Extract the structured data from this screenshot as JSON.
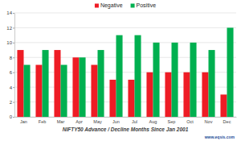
{
  "chart_data": {
    "type": "bar",
    "title": "NIFTY50 Advance / Decline Months Since Jan 2001",
    "annotations": [
      "www.eqsis.com"
    ],
    "categories": [
      "Jan",
      "Feb",
      "Mar",
      "Apr",
      "May",
      "Jun",
      "Jul",
      "Aug",
      "Sep",
      "Oct",
      "Nov",
      "Dec"
    ],
    "series": [
      {
        "name": "Negative",
        "color": "#ee1c25",
        "values": [
          9,
          7,
          9,
          8,
          7,
          5,
          5,
          6,
          6,
          6,
          6,
          3
        ]
      },
      {
        "name": "Positive",
        "color": "#00b050",
        "values": [
          7,
          9,
          7,
          8,
          9,
          11,
          11,
          10,
          10,
          10,
          9,
          12
        ]
      }
    ],
    "ylim": [
      0,
      14
    ],
    "yticks": [
      0,
      2,
      4,
      6,
      8,
      10,
      12,
      14
    ],
    "grid": true,
    "legend": "top"
  }
}
